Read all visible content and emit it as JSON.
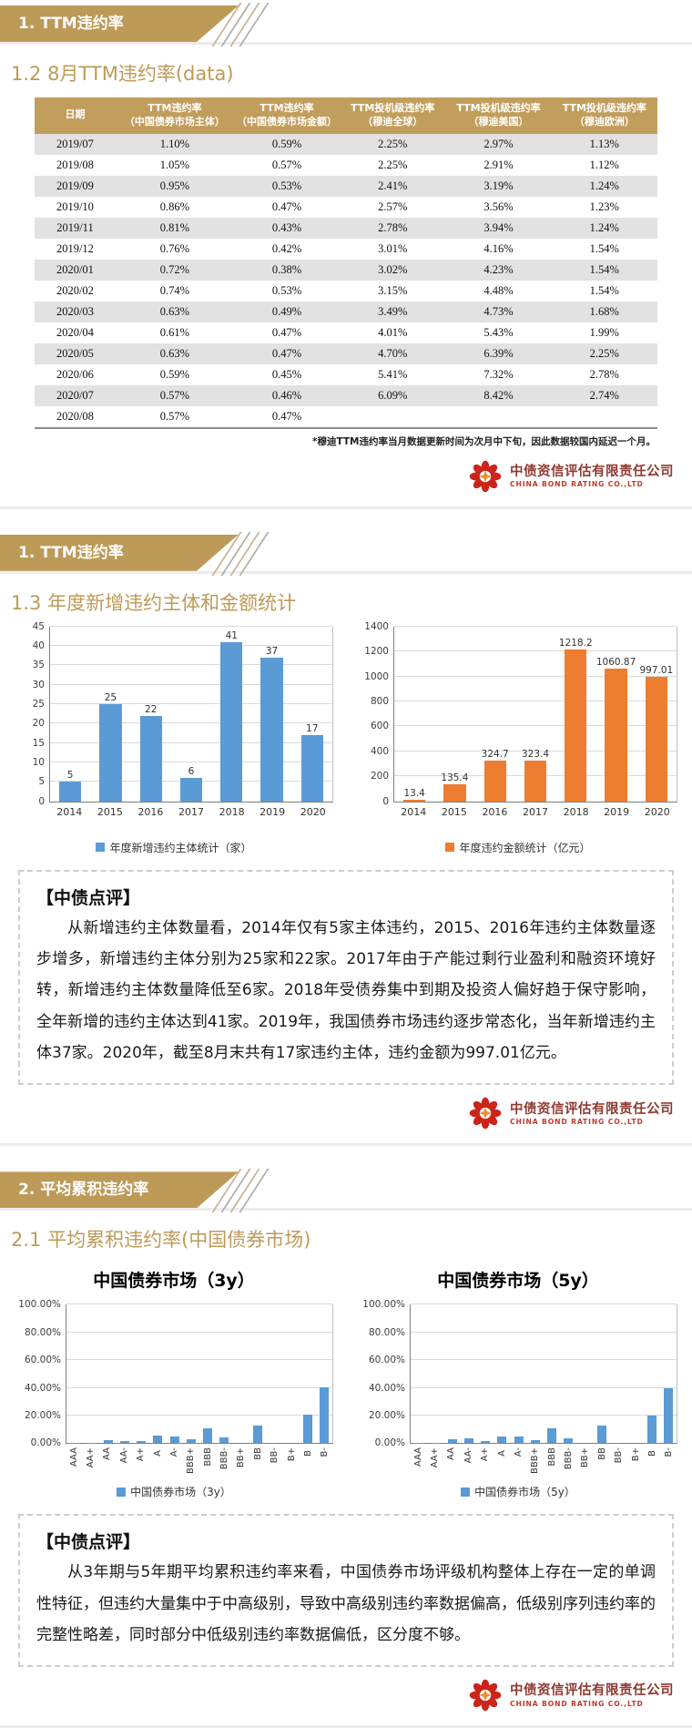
{
  "brand": {
    "name_cn": "中债资信评估有限责任公司",
    "name_en": "CHINA BOND RATING CO.,LTD",
    "logo_color": "#CC2418"
  },
  "colors": {
    "gold": "#BE9A58",
    "blue": "#5B9BD5",
    "orange": "#ED7D31"
  },
  "section1": {
    "banner": "1. TTM违约率",
    "subtitle": "1.2 8月TTM违约率(data)",
    "table": {
      "headers": [
        "日期",
        "TTM违约率\n（中国债券市场主体）",
        "TTM违约率\n（中国债券市场金额）",
        "TTM投机级违约率\n（穆迪全球）",
        "TTM投机级违约率\n（穆迪美国）",
        "TTM投机级违约率\n（穆迪欧洲）"
      ],
      "rows": [
        [
          "2019/07",
          "1.10%",
          "0.59%",
          "2.25%",
          "2.97%",
          "1.13%"
        ],
        [
          "2019/08",
          "1.05%",
          "0.57%",
          "2.25%",
          "2.91%",
          "1.12%"
        ],
        [
          "2019/09",
          "0.95%",
          "0.53%",
          "2.41%",
          "3.19%",
          "1.24%"
        ],
        [
          "2019/10",
          "0.86%",
          "0.47%",
          "2.57%",
          "3.56%",
          "1.23%"
        ],
        [
          "2019/11",
          "0.81%",
          "0.43%",
          "2.78%",
          "3.94%",
          "1.24%"
        ],
        [
          "2019/12",
          "0.76%",
          "0.42%",
          "3.01%",
          "4.16%",
          "1.54%"
        ],
        [
          "2020/01",
          "0.72%",
          "0.38%",
          "3.02%",
          "4.23%",
          "1.54%"
        ],
        [
          "2020/02",
          "0.74%",
          "0.53%",
          "3.15%",
          "4.48%",
          "1.54%"
        ],
        [
          "2020/03",
          "0.63%",
          "0.49%",
          "3.49%",
          "4.73%",
          "1.68%"
        ],
        [
          "2020/04",
          "0.61%",
          "0.47%",
          "4.01%",
          "5.43%",
          "1.99%"
        ],
        [
          "2020/05",
          "0.63%",
          "0.47%",
          "4.70%",
          "6.39%",
          "2.25%"
        ],
        [
          "2020/06",
          "0.59%",
          "0.45%",
          "5.41%",
          "7.32%",
          "2.78%"
        ],
        [
          "2020/07",
          "0.57%",
          "0.46%",
          "6.09%",
          "8.42%",
          "2.74%"
        ],
        [
          "2020/08",
          "0.57%",
          "0.47%",
          "",
          "",
          ""
        ]
      ]
    },
    "footnote": "*穆迪TTM违约率当月数据更新时间为次月中下旬，因此数据较国内延迟一个月。"
  },
  "section2": {
    "banner": "1. TTM违约率",
    "subtitle": "1.3 年度新增违约主体和金额统计",
    "comment_title": "【中债点评】",
    "comment_body": "从新增违约主体数量看，2014年仅有5家主体违约，2015、2016年违约主体数量逐步增多，新增违约主体分别为25家和22家。2017年由于产能过剩行业盈利和融资环境好转，新增违约主体数量降低至6家。2018年受债券集中到期及投资人偏好趋于保守影响，全年新增的违约主体达到41家。2019年，我国债券市场违约逐步常态化，当年新增违约主体37家。2020年，截至8月末共有17家违约主体，违约金额为997.01亿元。"
  },
  "section3": {
    "banner": "2. 平均累积违约率",
    "subtitle": "2.1 平均累积违约率(中国债券市场)",
    "chart3y_title": "中国债券市场（3y）",
    "chart5y_title": "中国债券市场（5y）",
    "comment_title": "【中债点评】",
    "comment_body": "从3年期与5年期平均累积违约率来看，中国债券市场评级机构整体上存在一定的单调性特征，但违约大量集中于中高级别，导致中高级别违约率数据偏高，低级别序列违约率的完整性略差，同时部分中低级别违约率数据偏低，区分度不够。"
  },
  "chart_data": [
    {
      "id": "new_defaulters",
      "type": "bar",
      "categories": [
        "2014",
        "2015",
        "2016",
        "2017",
        "2018",
        "2019",
        "2020"
      ],
      "values": [
        5,
        25,
        22,
        6,
        41,
        37,
        17
      ],
      "bar_color": "#5B9BD5",
      "ylim": [
        0,
        45
      ],
      "ytick_step": 5,
      "legend": "年度新增违约主体统计（家）",
      "show_labels": true,
      "y_format": "number",
      "rotate_x_labels": false,
      "grid": true,
      "legend_position": "bottom"
    },
    {
      "id": "default_amount",
      "type": "bar",
      "categories": [
        "2014",
        "2015",
        "2016",
        "2017",
        "2018",
        "2019",
        "2020"
      ],
      "values": [
        13.4,
        135.4,
        324.7,
        323.4,
        1218.2,
        1060.87,
        997.01
      ],
      "bar_color": "#ED7D31",
      "ylim": [
        0,
        1400
      ],
      "ytick_step": 200,
      "legend": "年度违约金额统计（亿元）",
      "show_labels": true,
      "y_format": "number",
      "rotate_x_labels": false,
      "grid": true,
      "legend_position": "bottom"
    },
    {
      "id": "cum_3y",
      "type": "bar",
      "title": "中国债券市场（3y）",
      "categories": [
        "AAA",
        "AA+",
        "AA",
        "AA-",
        "A+",
        "A",
        "A-",
        "BBB+",
        "BBB",
        "BBB-",
        "BB+",
        "BB",
        "BB-",
        "B+",
        "B",
        "B-"
      ],
      "values": [
        0.4,
        0.5,
        2.0,
        1.3,
        1.3,
        5.5,
        4.8,
        2.8,
        10.8,
        4.0,
        0,
        13.0,
        0,
        0,
        20.3,
        40.2
      ],
      "bar_color": "#5B9BD5",
      "ylim": [
        0,
        100
      ],
      "ytick_step": 20,
      "legend": "中国债券市场（3y）",
      "show_labels": false,
      "y_format": "percent",
      "rotate_x_labels": true,
      "grid": true,
      "legend_position": "bottom"
    },
    {
      "id": "cum_5y",
      "type": "bar",
      "title": "中国债券市场（5y）",
      "categories": [
        "AAA",
        "AA+",
        "AA",
        "AA-",
        "A+",
        "A",
        "A-",
        "BBB+",
        "BBB",
        "BBB-",
        "BB+",
        "BB",
        "BB-",
        "B+",
        "B",
        "B-"
      ],
      "values": [
        0.4,
        0.5,
        3.0,
        3.5,
        1.5,
        5.0,
        4.8,
        2.5,
        10.5,
        3.8,
        0,
        13.0,
        0,
        0,
        20.0,
        40.0
      ],
      "bar_color": "#5B9BD5",
      "ylim": [
        0,
        100
      ],
      "ytick_step": 20,
      "legend": "中国债券市场（5y）",
      "show_labels": false,
      "y_format": "percent",
      "rotate_x_labels": true,
      "grid": true,
      "legend_position": "bottom"
    }
  ]
}
